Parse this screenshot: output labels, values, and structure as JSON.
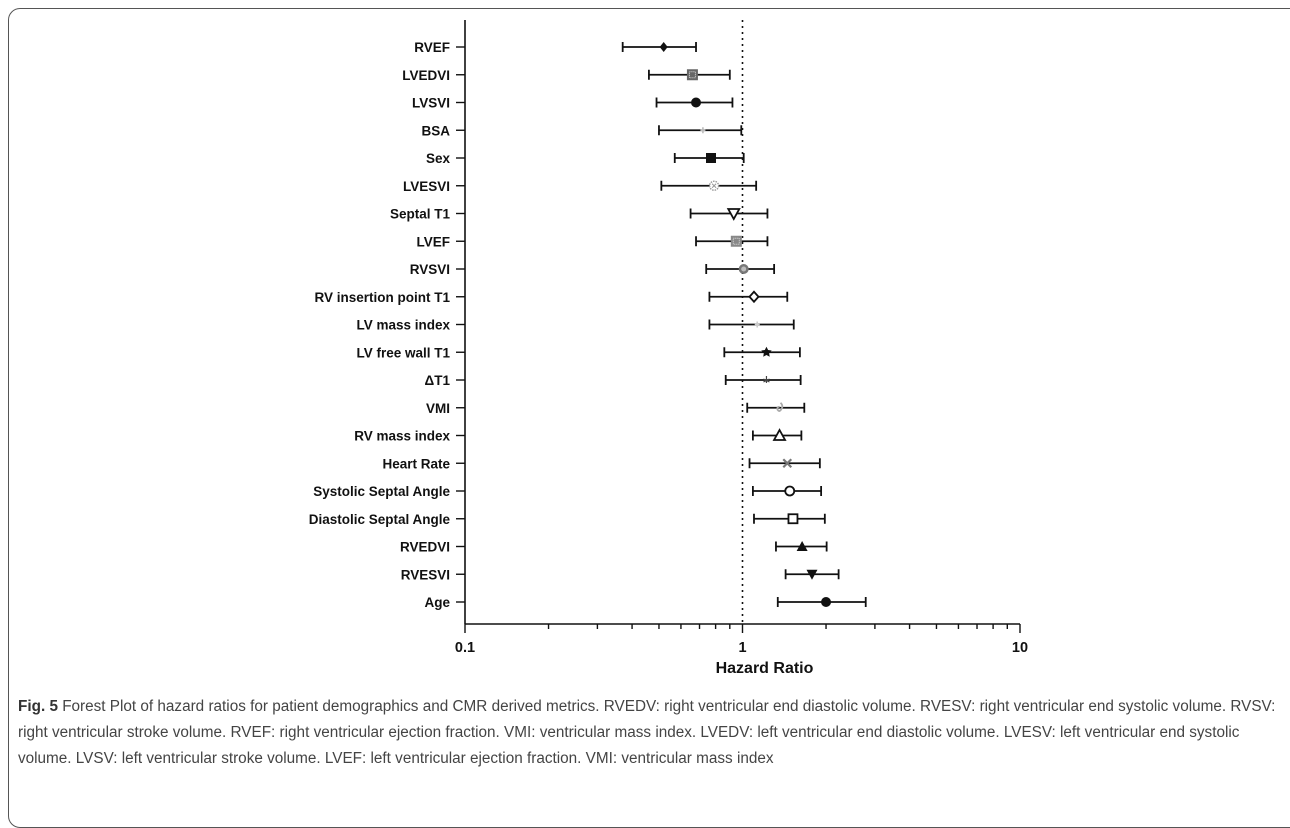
{
  "chart_data": {
    "type": "forest",
    "xlabel": "Hazard Ratio",
    "x_scale": "log",
    "xlim": [
      0.1,
      10
    ],
    "x_ticks": [
      {
        "value": 0.1,
        "label": "0.1"
      },
      {
        "value": 1,
        "label": "1"
      },
      {
        "value": 10,
        "label": "10"
      }
    ],
    "reference_line": 1,
    "rows": [
      {
        "label": "RVEF",
        "hr": 0.52,
        "lower": 0.37,
        "upper": 0.68,
        "marker": "diamond-filled",
        "color": "#111111"
      },
      {
        "label": "LVEDVI",
        "hr": 0.66,
        "lower": 0.46,
        "upper": 0.9,
        "marker": "square-dotted",
        "color": "#666666"
      },
      {
        "label": "LVSVI",
        "hr": 0.68,
        "lower": 0.49,
        "upper": 0.92,
        "marker": "circle-filled",
        "color": "#111111"
      },
      {
        "label": "BSA",
        "hr": 0.72,
        "lower": 0.5,
        "upper": 0.99,
        "marker": "plus-small",
        "color": "#bbbbbb"
      },
      {
        "label": "Sex",
        "hr": 0.77,
        "lower": 0.57,
        "upper": 1.01,
        "marker": "square-filled",
        "color": "#111111"
      },
      {
        "label": "LVESVI",
        "hr": 0.79,
        "lower": 0.51,
        "upper": 1.12,
        "marker": "circle-dotted",
        "color": "#999999"
      },
      {
        "label": "Septal T1",
        "hr": 0.93,
        "lower": 0.65,
        "upper": 1.23,
        "marker": "triangle-down-open",
        "color": "#111111"
      },
      {
        "label": "LVEF",
        "hr": 0.95,
        "lower": 0.68,
        "upper": 1.23,
        "marker": "square-dotted",
        "color": "#888888"
      },
      {
        "label": "RVSVI",
        "hr": 1.01,
        "lower": 0.74,
        "upper": 1.3,
        "marker": "circle-ring",
        "color": "#777777"
      },
      {
        "label": "RV insertion point T1",
        "hr": 1.1,
        "lower": 0.76,
        "upper": 1.45,
        "marker": "diamond-open",
        "color": "#111111"
      },
      {
        "label": "LV mass index",
        "hr": 1.13,
        "lower": 0.76,
        "upper": 1.53,
        "marker": "plus-small",
        "color": "#cccccc"
      },
      {
        "label": "LV free wall T1",
        "hr": 1.22,
        "lower": 0.86,
        "upper": 1.61,
        "marker": "star-filled",
        "color": "#111111"
      },
      {
        "label": "ΔT1",
        "hr": 1.22,
        "lower": 0.87,
        "upper": 1.62,
        "marker": "asterisk-small",
        "color": "#444444"
      },
      {
        "label": "VMI",
        "hr": 1.36,
        "lower": 1.04,
        "upper": 1.67,
        "marker": "swirl",
        "color": "#aaaaaa"
      },
      {
        "label": "RV mass index",
        "hr": 1.36,
        "lower": 1.09,
        "upper": 1.63,
        "marker": "triangle-up-open",
        "color": "#111111"
      },
      {
        "label": "Heart Rate",
        "hr": 1.45,
        "lower": 1.06,
        "upper": 1.9,
        "marker": "x-cross",
        "color": "#777777"
      },
      {
        "label": "Systolic Septal Angle",
        "hr": 1.48,
        "lower": 1.09,
        "upper": 1.92,
        "marker": "circle-open",
        "color": "#111111"
      },
      {
        "label": "Diastolic Septal Angle",
        "hr": 1.52,
        "lower": 1.1,
        "upper": 1.98,
        "marker": "square-open",
        "color": "#111111"
      },
      {
        "label": "RVEDVI",
        "hr": 1.64,
        "lower": 1.32,
        "upper": 2.01,
        "marker": "triangle-up-filled",
        "color": "#111111"
      },
      {
        "label": "RVESVI",
        "hr": 1.78,
        "lower": 1.43,
        "upper": 2.22,
        "marker": "triangle-down-filled",
        "color": "#111111"
      },
      {
        "label": "Age",
        "hr": 2.0,
        "lower": 1.34,
        "upper": 2.78,
        "marker": "circle-filled",
        "color": "#111111"
      }
    ]
  },
  "caption": {
    "figure_label": "Fig. 5",
    "text": "Forest Plot of hazard ratios for patient demographics and CMR derived metrics. RVEDV: right ventricular end diastolic volume. RVESV: right ventricular end systolic volume. RVSV: right ventricular stroke volume. RVEF: right ventricular ejection fraction. VMI: ventricular mass index. LVEDV: left ventricular end diastolic volume. LVESV: left ventricular end systolic volume. LVSV: left ventricular stroke volume. LVEF: left ventricular ejection fraction. VMI: ventricular mass index"
  }
}
